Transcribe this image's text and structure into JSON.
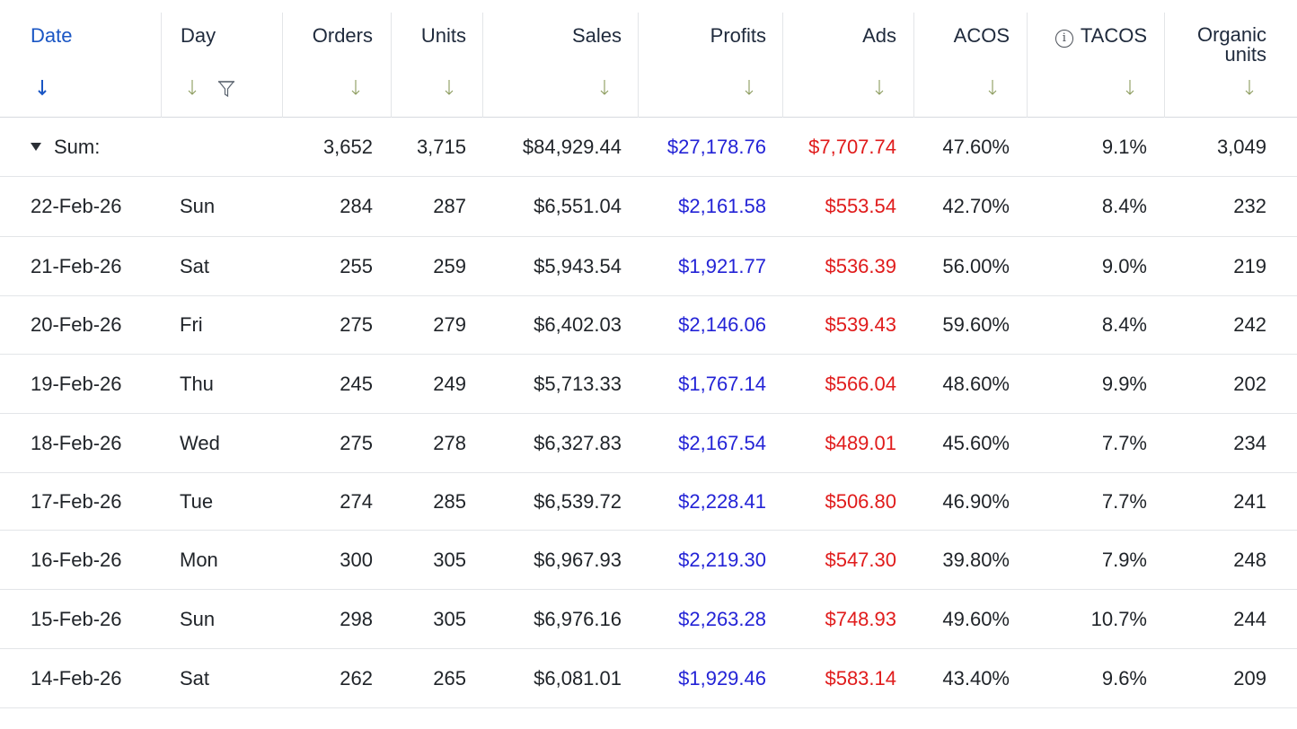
{
  "columns": {
    "date": "Date",
    "day": "Day",
    "orders": "Orders",
    "units": "Units",
    "sales": "Sales",
    "profits": "Profits",
    "ads": "Ads",
    "acos": "ACOS",
    "tacos": "TACOS",
    "organic_units_line1": "Organic",
    "organic_units_line2": "units"
  },
  "summary": {
    "label": "Sum:",
    "orders": "3,652",
    "units": "3,715",
    "sales": "$84,929.44",
    "profits": "$27,178.76",
    "ads": "$7,707.74",
    "acos": "47.60%",
    "tacos": "9.1%",
    "organic_units": "3,049"
  },
  "rows": [
    {
      "date": "22-Feb-26",
      "day": "Sun",
      "orders": "284",
      "units": "287",
      "sales": "$6,551.04",
      "profits": "$2,161.58",
      "ads": "$553.54",
      "acos": "42.70%",
      "tacos": "8.4%",
      "organic_units": "232"
    },
    {
      "date": "21-Feb-26",
      "day": "Sat",
      "orders": "255",
      "units": "259",
      "sales": "$5,943.54",
      "profits": "$1,921.77",
      "ads": "$536.39",
      "acos": "56.00%",
      "tacos": "9.0%",
      "organic_units": "219"
    },
    {
      "date": "20-Feb-26",
      "day": "Fri",
      "orders": "275",
      "units": "279",
      "sales": "$6,402.03",
      "profits": "$2,146.06",
      "ads": "$539.43",
      "acos": "59.60%",
      "tacos": "8.4%",
      "organic_units": "242"
    },
    {
      "date": "19-Feb-26",
      "day": "Thu",
      "orders": "245",
      "units": "249",
      "sales": "$5,713.33",
      "profits": "$1,767.14",
      "ads": "$566.04",
      "acos": "48.60%",
      "tacos": "9.9%",
      "organic_units": "202"
    },
    {
      "date": "18-Feb-26",
      "day": "Wed",
      "orders": "275",
      "units": "278",
      "sales": "$6,327.83",
      "profits": "$2,167.54",
      "ads": "$489.01",
      "acos": "45.60%",
      "tacos": "7.7%",
      "organic_units": "234"
    },
    {
      "date": "17-Feb-26",
      "day": "Tue",
      "orders": "274",
      "units": "285",
      "sales": "$6,539.72",
      "profits": "$2,228.41",
      "ads": "$506.80",
      "acos": "46.90%",
      "tacos": "7.7%",
      "organic_units": "241"
    },
    {
      "date": "16-Feb-26",
      "day": "Mon",
      "orders": "300",
      "units": "305",
      "sales": "$6,967.93",
      "profits": "$2,219.30",
      "ads": "$547.30",
      "acos": "39.80%",
      "tacos": "7.9%",
      "organic_units": "248"
    },
    {
      "date": "15-Feb-26",
      "day": "Sun",
      "orders": "298",
      "units": "305",
      "sales": "$6,976.16",
      "profits": "$2,263.28",
      "ads": "$748.93",
      "acos": "49.60%",
      "tacos": "10.7%",
      "organic_units": "244"
    },
    {
      "date": "14-Feb-26",
      "day": "Sat",
      "orders": "262",
      "units": "265",
      "sales": "$6,081.01",
      "profits": "$1,929.46",
      "ads": "$583.14",
      "acos": "43.40%",
      "tacos": "9.6%",
      "organic_units": "209"
    }
  ],
  "colors": {
    "header_active": "#1a56c4",
    "profits": "#2323d6",
    "ads": "#e01b1b",
    "sort_inactive": "#8a9a5b"
  },
  "icons": {
    "sort_active": "sort-down-arrow-icon",
    "sort_inactive": "sort-down-arrow-icon",
    "filter": "filter-icon",
    "info": "info-icon",
    "collapse": "caret-down-icon"
  }
}
